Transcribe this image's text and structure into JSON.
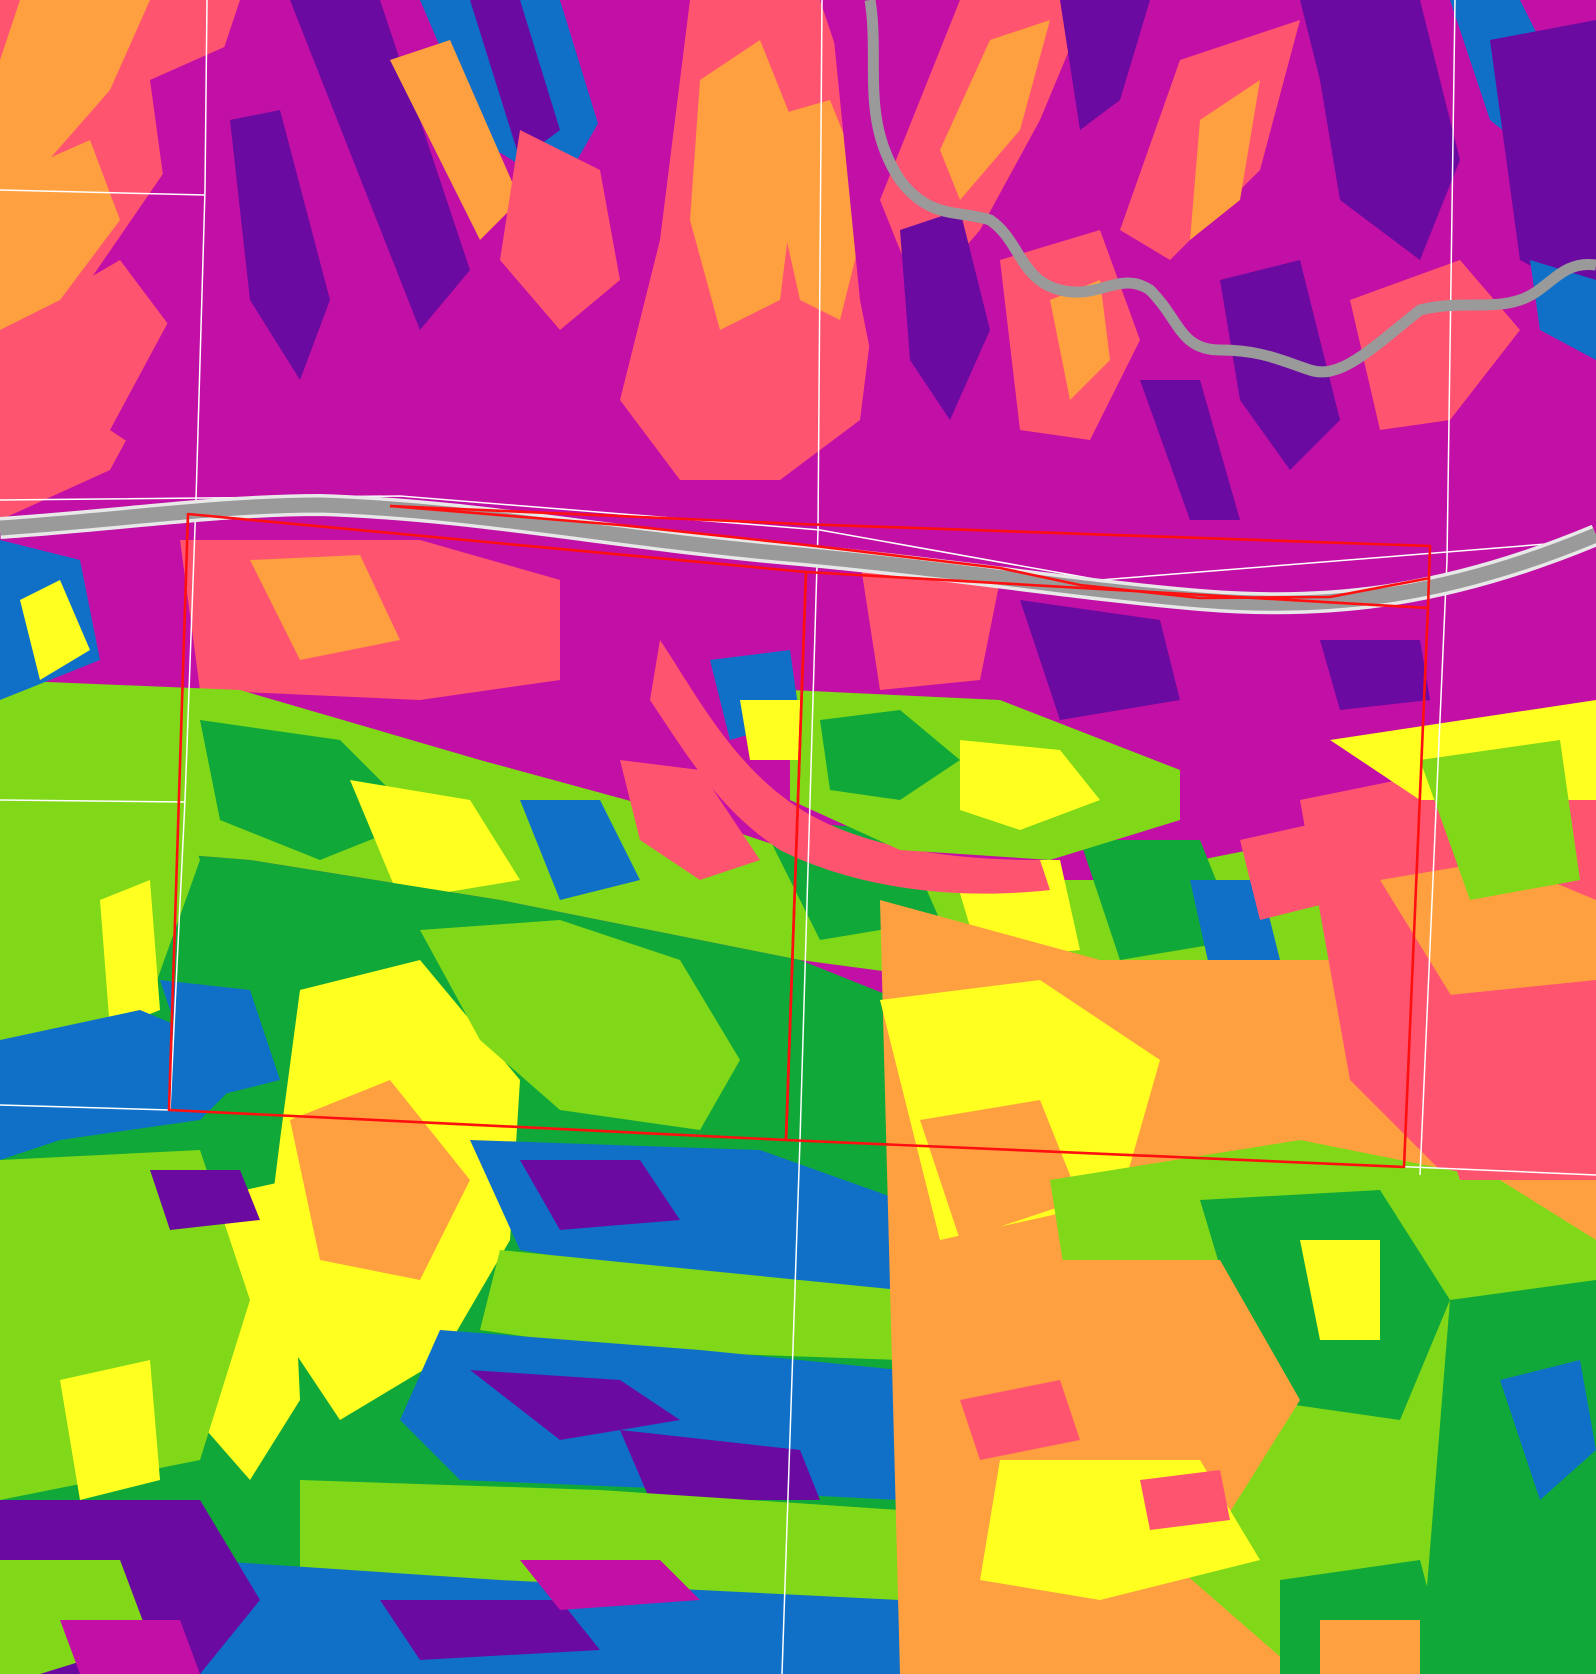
{
  "map": {
    "type": "aspect-raster",
    "legend_visible": false,
    "aspect_palette": {
      "north": "#c20fa5",
      "northeast": "#ff5470",
      "east": "#ffa040",
      "southeast": "#ffff20",
      "south": "#80d818",
      "southwest": "#10a838",
      "west": "#1070c8",
      "northwest": "#6a0aa0"
    },
    "overlay_colors": {
      "road": "#9a9a9a",
      "road_edge": "#e8e8e8",
      "parcel_lines": "#ffffff",
      "selection_outline": "#ff1010"
    },
    "features": {
      "roads": [
        {
          "name": "highway-east-west"
        },
        {
          "name": "road-north-curvy"
        }
      ],
      "selected_parcels": [
        {
          "name": "parcel-west"
        },
        {
          "name": "parcel-east"
        }
      ],
      "survey_grid": true
    }
  }
}
